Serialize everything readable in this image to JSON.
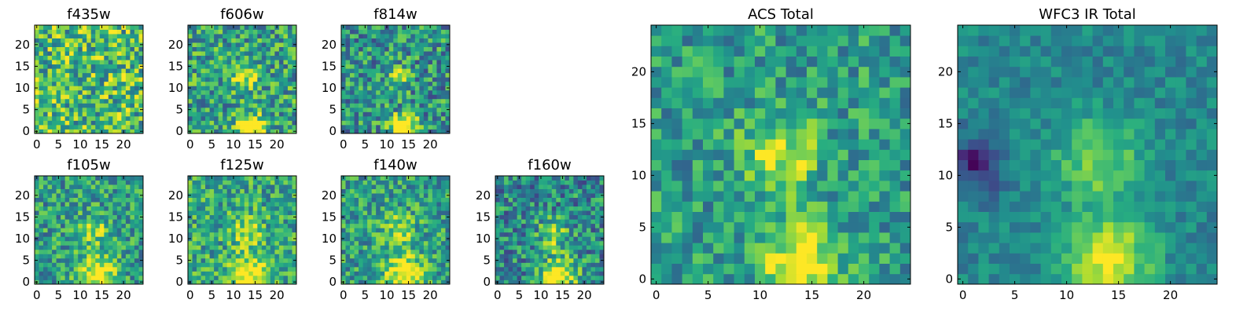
{
  "figure": {
    "description_hidden": false
  },
  "colormap": "viridis",
  "chart_data": [
    {
      "type": "heatmap",
      "title": "f435w",
      "grid_size": 25,
      "xticks": [
        0,
        5,
        10,
        15,
        20
      ],
      "yticks": [
        0,
        5,
        10,
        15,
        20
      ],
      "features": [],
      "noise": 0.34,
      "base": 0.68
    },
    {
      "type": "heatmap",
      "title": "f606w",
      "grid_size": 25,
      "xticks": [
        0,
        5,
        10,
        15,
        20
      ],
      "yticks": [
        0,
        5,
        10,
        15,
        20
      ],
      "features": [
        {
          "x": 14,
          "y": 1,
          "r": 2.2,
          "a": 0.6
        },
        {
          "x": 12.5,
          "y": 12.5,
          "r": 2.2,
          "a": 0.35
        }
      ],
      "noise": 0.3,
      "base": 0.58
    },
    {
      "type": "heatmap",
      "title": "f814w",
      "grid_size": 25,
      "xticks": [
        0,
        5,
        10,
        15,
        20
      ],
      "yticks": [
        0,
        5,
        10,
        15,
        20
      ],
      "features": [
        {
          "x": 14,
          "y": 1,
          "r": 2.0,
          "a": 0.75
        },
        {
          "x": 12.5,
          "y": 12.5,
          "r": 2.0,
          "a": 0.3
        }
      ],
      "noise": 0.3,
      "base": 0.52
    },
    {
      "type": "heatmap",
      "title": "f105w",
      "grid_size": 25,
      "xticks": [
        0,
        5,
        10,
        15,
        20
      ],
      "yticks": [
        0,
        5,
        10,
        15,
        20
      ],
      "features": [
        {
          "x": 14,
          "y": 2,
          "r": 3.0,
          "a": 0.55
        },
        {
          "x": 13,
          "y": 12,
          "r": 2.5,
          "a": 0.3
        }
      ],
      "noise": 0.26,
      "base": 0.55
    },
    {
      "type": "heatmap",
      "title": "f125w",
      "grid_size": 25,
      "xticks": [
        0,
        5,
        10,
        15,
        20
      ],
      "yticks": [
        0,
        5,
        10,
        15,
        20
      ],
      "features": [
        {
          "x": 14,
          "y": 2,
          "r": 3.0,
          "a": 0.5
        },
        {
          "x": 13,
          "y": 12,
          "r": 2.5,
          "a": 0.3
        }
      ],
      "noise": 0.26,
      "base": 0.6
    },
    {
      "type": "heatmap",
      "title": "f140w",
      "grid_size": 25,
      "xticks": [
        0,
        5,
        10,
        15,
        20
      ],
      "yticks": [
        0,
        5,
        10,
        15,
        20
      ],
      "features": [
        {
          "x": 14,
          "y": 2,
          "r": 3.0,
          "a": 0.55
        },
        {
          "x": 13,
          "y": 12,
          "r": 2.5,
          "a": 0.35
        }
      ],
      "noise": 0.26,
      "base": 0.56
    },
    {
      "type": "heatmap",
      "title": "f160w",
      "grid_size": 25,
      "xticks": [
        0,
        5,
        10,
        15,
        20
      ],
      "yticks": [
        0,
        5,
        10,
        15,
        20
      ],
      "features": [
        {
          "x": 14,
          "y": 1.5,
          "r": 3.0,
          "a": 0.6
        },
        {
          "x": 13,
          "y": 11,
          "r": 2.5,
          "a": 0.35
        }
      ],
      "noise": 0.28,
      "base": 0.48
    },
    {
      "type": "heatmap",
      "title": "ACS Total",
      "grid_size": 25,
      "xticks": [
        0,
        5,
        10,
        15,
        20
      ],
      "yticks": [
        0,
        5,
        10,
        15,
        20
      ],
      "features": [
        {
          "x": 14,
          "y": 1.5,
          "r": 2.5,
          "a": 0.55
        },
        {
          "x": 12,
          "y": 12,
          "r": 2.5,
          "a": 0.4
        }
      ],
      "noise": 0.22,
      "base": 0.55
    },
    {
      "type": "heatmap",
      "title": "WFC3 IR Total",
      "grid_size": 25,
      "xticks": [
        0,
        5,
        10,
        15,
        20
      ],
      "yticks": [
        0,
        5,
        10,
        15,
        20
      ],
      "features": [
        {
          "x": 14,
          "y": 2,
          "r": 2.8,
          "a": 0.55
        },
        {
          "x": 13,
          "y": 11.5,
          "r": 2.8,
          "a": 0.35
        },
        {
          "x": 1,
          "y": 11,
          "r": 2.0,
          "a": -0.35
        }
      ],
      "noise": 0.12,
      "base": 0.47
    }
  ]
}
